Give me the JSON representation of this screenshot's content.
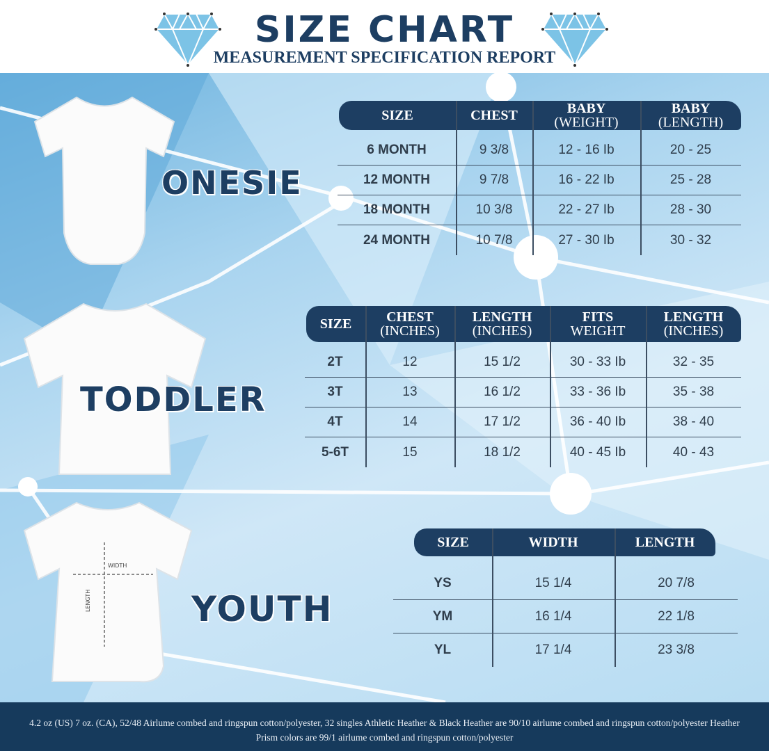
{
  "header": {
    "title": "SIZE CHART",
    "subtitle": "MEASUREMENT SPECIFICATION REPORT",
    "icon": "diamond-icon"
  },
  "colors": {
    "navy": "#1d3e62",
    "background": "#a9d4ef",
    "gem": "#7cc3e6"
  },
  "onesie": {
    "label": "ONESIE",
    "headers": [
      [
        "SIZE",
        ""
      ],
      [
        "CHEST",
        ""
      ],
      [
        "BABY",
        "(WEIGHT)"
      ],
      [
        "BABY",
        "(LENGTH)"
      ]
    ],
    "rows": [
      [
        "6 MONTH",
        "9 3/8",
        "12 - 16 Ib",
        "20 - 25"
      ],
      [
        "12 MONTH",
        "9 7/8",
        "16 - 22 Ib",
        "25 - 28"
      ],
      [
        "18  MONTH",
        "10 3/8",
        "22 - 27 Ib",
        "28 - 30"
      ],
      [
        "24 MONTH",
        "10 7/8",
        "27 - 30 Ib",
        "30 - 32"
      ]
    ]
  },
  "toddler": {
    "label": "TODDLER",
    "headers": [
      [
        "SIZE",
        ""
      ],
      [
        "CHEST",
        "(INCHES)"
      ],
      [
        "LENGTH",
        "(INCHES)"
      ],
      [
        "FITS",
        "WEIGHT"
      ],
      [
        "LENGTH",
        "(INCHES)"
      ]
    ],
    "rows": [
      [
        "2T",
        "12",
        "15 1/2",
        "30 - 33 Ib",
        "32 - 35"
      ],
      [
        "3T",
        "13",
        "16 1/2",
        "33 - 36 Ib",
        "35 - 38"
      ],
      [
        "4T",
        "14",
        "17 1/2",
        "36 - 40 Ib",
        "38 - 40"
      ],
      [
        "5-6T",
        "15",
        "18 1/2",
        "40 - 45 Ib",
        "40 - 43"
      ]
    ]
  },
  "youth": {
    "label": "YOUTH",
    "width_label": "WIDTH",
    "length_label": "LENGTH",
    "headers": [
      [
        "SIZE",
        ""
      ],
      [
        "WIDTH",
        ""
      ],
      [
        "LENGTH",
        ""
      ]
    ],
    "rows": [
      [
        "YS",
        "15 1/4",
        "20 7/8"
      ],
      [
        "YM",
        "16 1/4",
        "22 1/8"
      ],
      [
        "YL",
        "17 1/4",
        "23 3/8"
      ]
    ]
  },
  "footer": {
    "text": "4.2 oz (US) 7 oz. (CA), 52/48 Airlume combed and ringspun cotton/polyester, 32 singles Athletic Heather & Black Heather are 90/10 airlume combed and ringspun cotton/polyester Heather Prism colors are 99/1 airlume combed and ringspun cotton/polyester"
  }
}
